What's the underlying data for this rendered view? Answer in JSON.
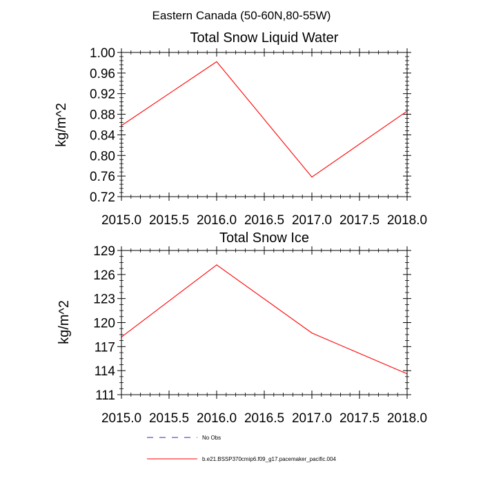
{
  "figure_title": "Eastern Canada (50-60N,80-55W)",
  "colors": {
    "series": "#ff0000",
    "obs": "#2b2bbf",
    "axis": "#000000"
  },
  "legend": [
    {
      "label": "No Obs",
      "style": "dashed",
      "color": "#2b2bbf"
    },
    {
      "label": "b.e21.BSSP370cmip6.f09_g17.pacemaker_pacific.004",
      "style": "solid",
      "color": "#ff0000"
    }
  ],
  "chart_data": [
    {
      "type": "line",
      "title": "Total Snow Liquid Water",
      "xlabel": "",
      "ylabel": "kg/m^2",
      "xlim": [
        2015.0,
        2018.0
      ],
      "ylim": [
        0.72,
        1.0
      ],
      "xticks": [
        "2015.0",
        "2015.5",
        "2016.0",
        "2016.5",
        "2017.0",
        "2017.5",
        "2018.0"
      ],
      "yticks": [
        "0.72",
        "0.76",
        "0.80",
        "0.84",
        "0.88",
        "0.92",
        "0.96",
        "1.00"
      ],
      "series": [
        {
          "name": "b.e21.BSSP370cmip6.f09_g17.pacemaker_pacific.004",
          "x": [
            2015,
            2016,
            2017,
            2018
          ],
          "values": [
            0.858,
            0.982,
            0.758,
            0.886
          ]
        }
      ]
    },
    {
      "type": "line",
      "title": "Total Snow Ice",
      "xlabel": "",
      "ylabel": "kg/m^2",
      "xlim": [
        2015.0,
        2018.0
      ],
      "ylim": [
        111,
        129
      ],
      "xticks": [
        "2015.0",
        "2015.5",
        "2016.0",
        "2016.5",
        "2017.0",
        "2017.5",
        "2018.0"
      ],
      "yticks": [
        "111",
        "114",
        "117",
        "120",
        "123",
        "126",
        "129"
      ],
      "series": [
        {
          "name": "b.e21.BSSP370cmip6.f09_g17.pacemaker_pacific.004",
          "x": [
            2015,
            2016,
            2017,
            2018
          ],
          "values": [
            118.2,
            127.2,
            118.7,
            113.6
          ]
        }
      ]
    }
  ]
}
